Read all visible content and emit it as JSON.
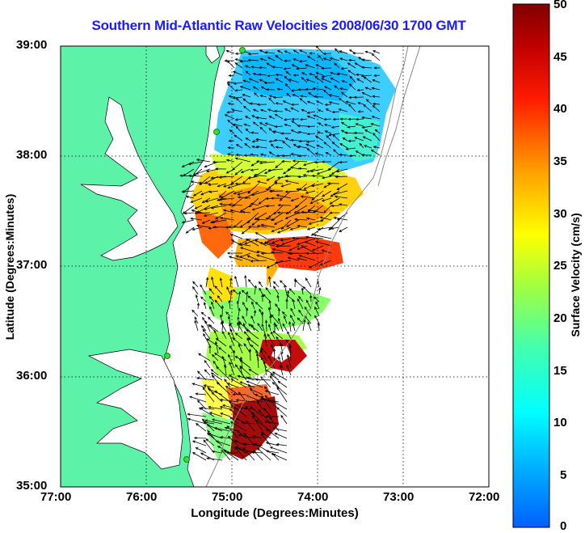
{
  "title": "Southern Mid-Atlantic Raw Velocities 2008/06/30 1700 GMT",
  "axes": {
    "xlabel": "Longitude (Degrees:Minutes)",
    "ylabel": "Latitude (Degrees:Minutes)",
    "xticks": [
      "77:00",
      "76:00",
      "75:00",
      "74:00",
      "73:00",
      "72:00"
    ],
    "yticks": [
      "39:00",
      "38:00",
      "37:00",
      "36:00",
      "35:00"
    ]
  },
  "colorbar": {
    "label": "Surface Velocity (cm/s)",
    "ticks": [
      "50",
      "45",
      "40",
      "35",
      "30",
      "25",
      "20",
      "15",
      "10",
      "5",
      "0"
    ],
    "min": 0,
    "max": 50
  },
  "colors": {
    "land": "#5cf2a8",
    "water": "#ffffff",
    "title": "#1a1aff",
    "grid": "#000000",
    "station": "#33dd33"
  }
}
